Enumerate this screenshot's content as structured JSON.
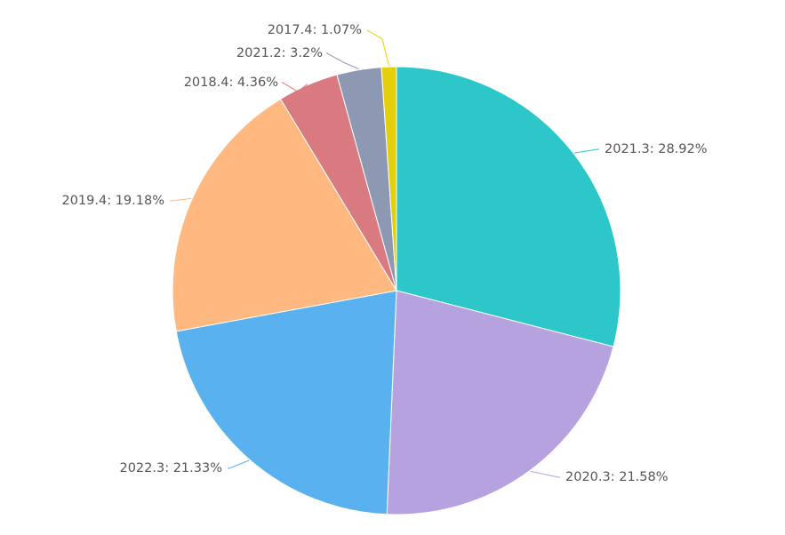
{
  "chart_data": {
    "type": "pie",
    "title": "",
    "legend": "none",
    "slices": [
      {
        "label": "2021.3",
        "value": 28.92,
        "text": "2021.3: 28.92%",
        "color": "#2ec7c9"
      },
      {
        "label": "2020.3",
        "value": 21.58,
        "text": "2020.3: 21.58%",
        "color": "#b6a2de"
      },
      {
        "label": "2022.3",
        "value": 21.33,
        "text": "2022.3: 21.33%",
        "color": "#5ab1ef"
      },
      {
        "label": "2019.4",
        "value": 19.18,
        "text": "2019.4: 19.18%",
        "color": "#ffb980"
      },
      {
        "label": "2018.4",
        "value": 4.36,
        "text": "2018.4: 4.36%",
        "color": "#d87a80"
      },
      {
        "label": "2021.2",
        "value": 3.2,
        "text": "2021.2: 3.2%",
        "color": "#8d98b3"
      },
      {
        "label": "2017.4",
        "value": 1.07,
        "text": "2017.4: 1.07%",
        "color": "#e5cf0d"
      }
    ]
  }
}
